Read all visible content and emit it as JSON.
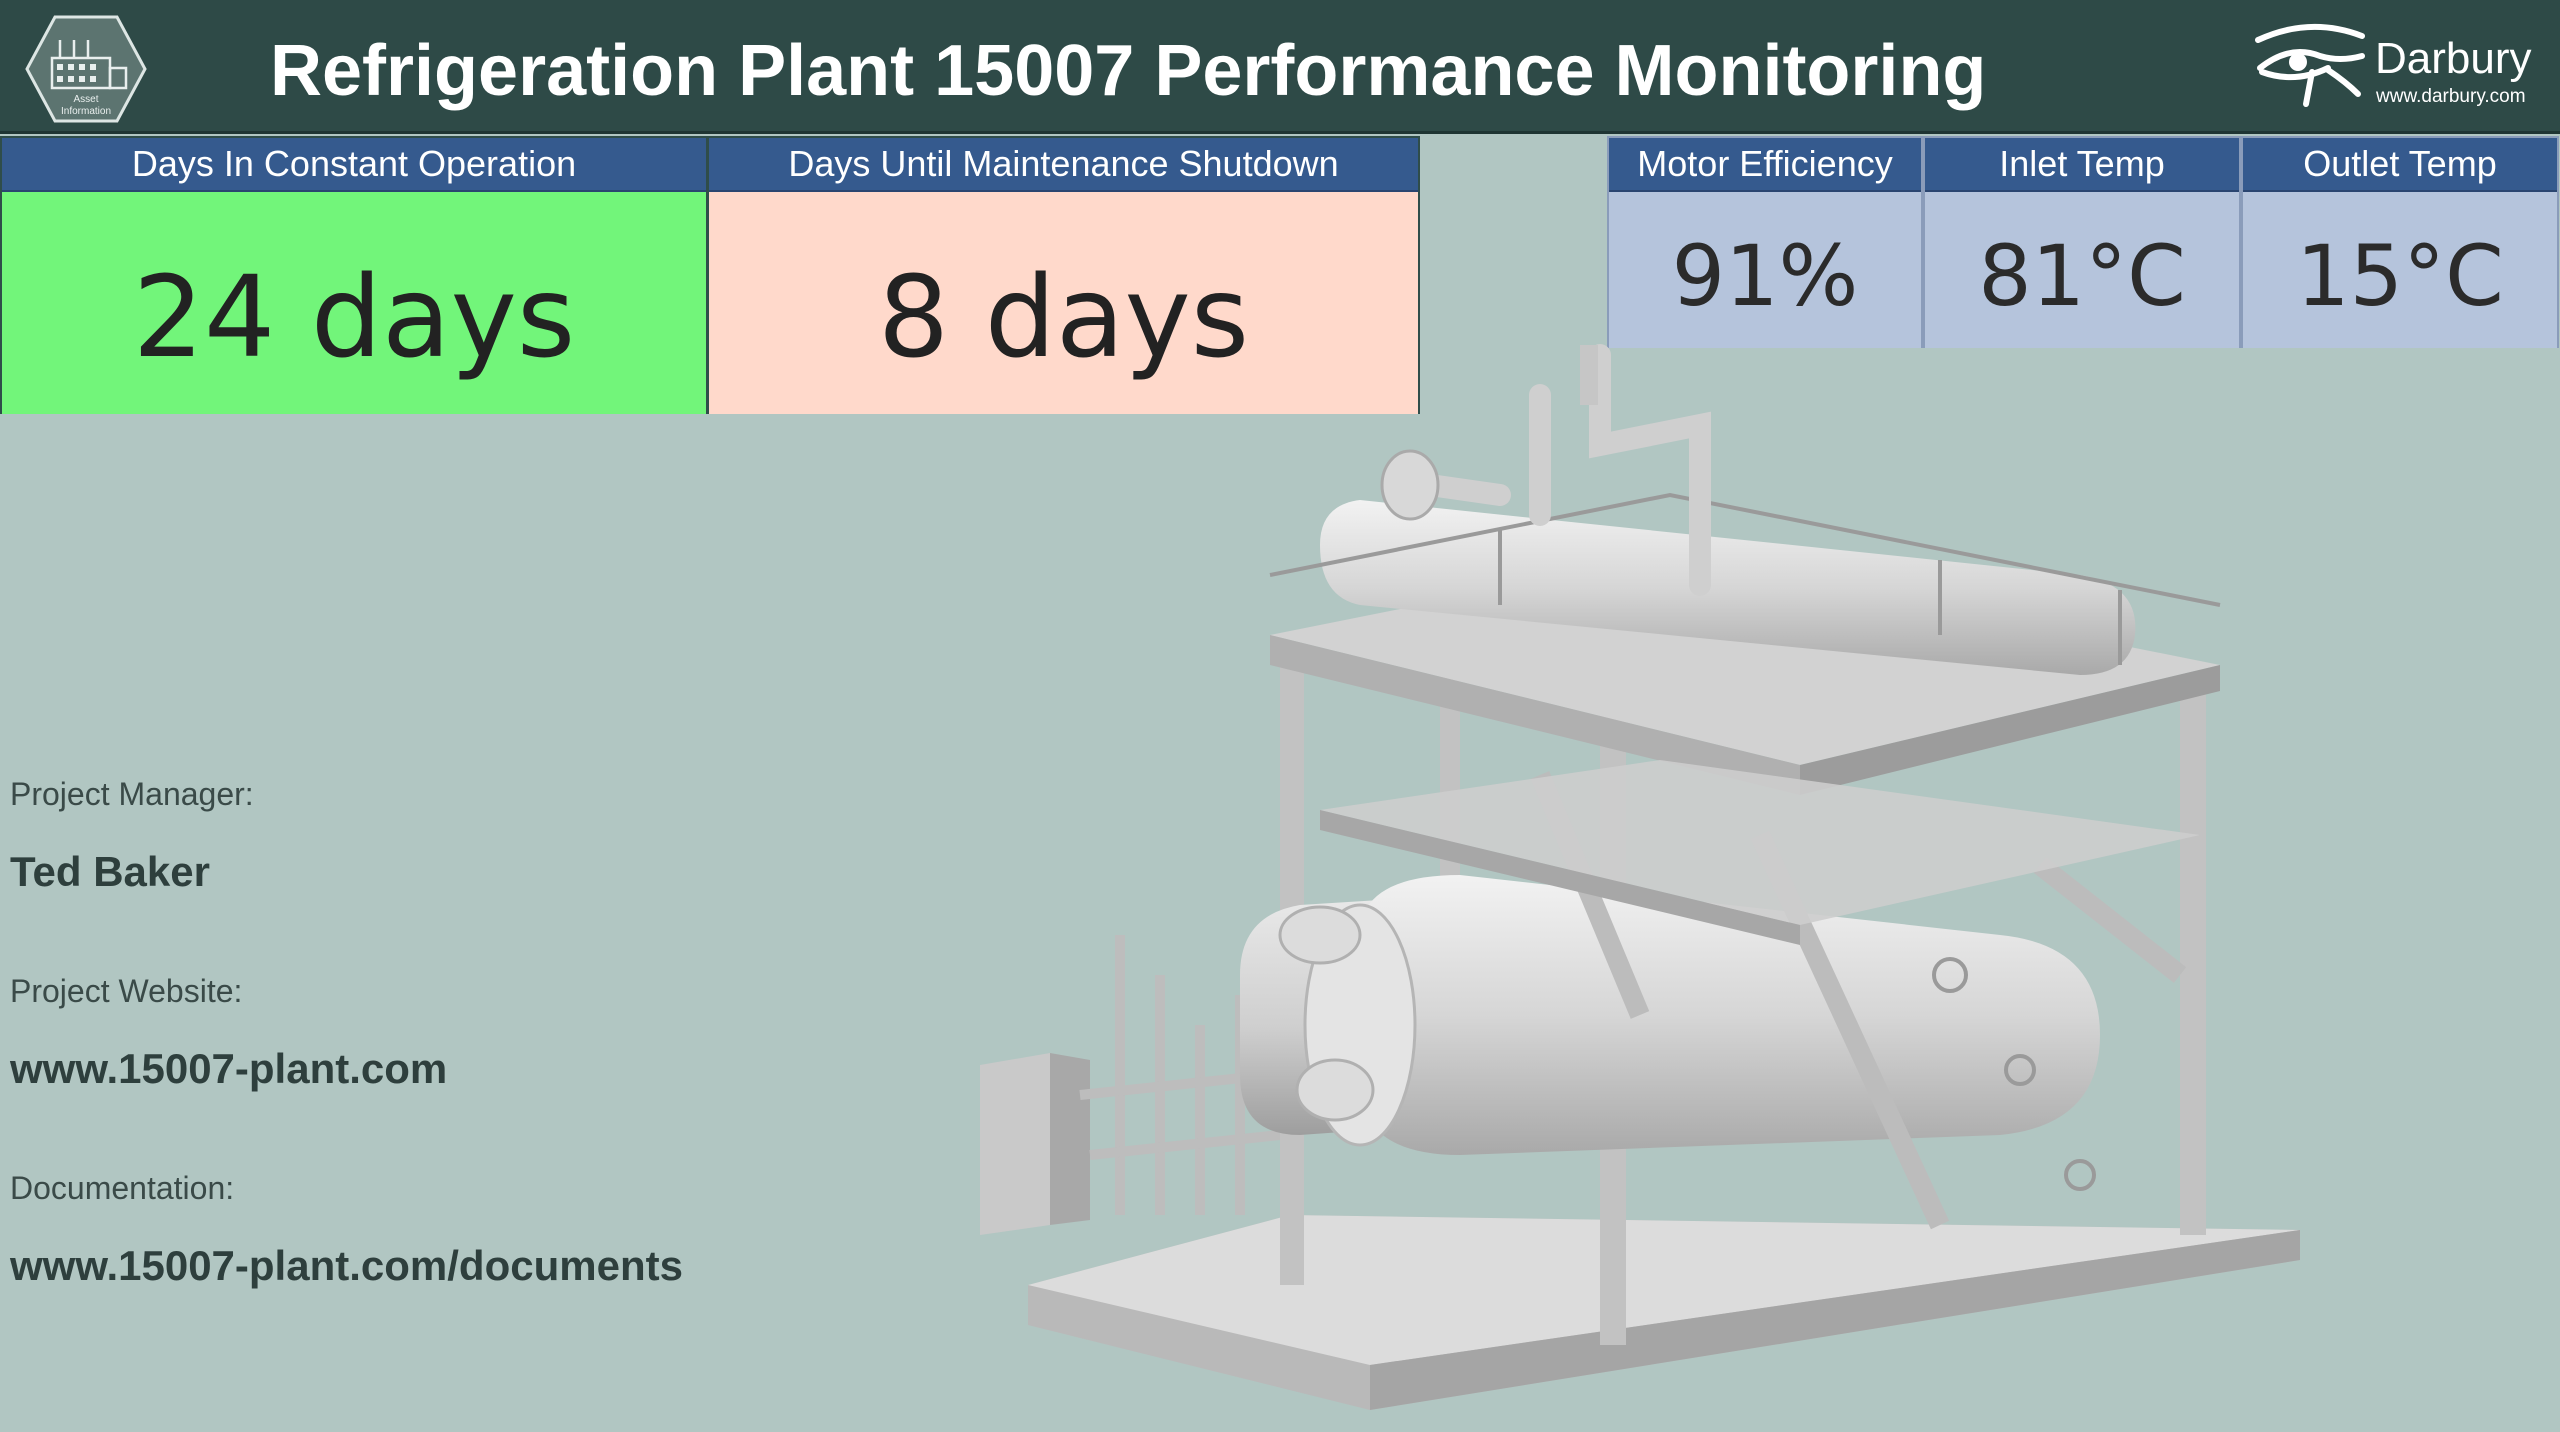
{
  "header": {
    "title": "Refrigeration Plant 15007 Performance Monitoring",
    "asset_icon_caption": [
      "Asset",
      "Information"
    ],
    "brand_name": "Darbury",
    "brand_url": "www.darbury.com"
  },
  "kpis": [
    {
      "label": "Days In Constant Operation",
      "value": "24 days",
      "color": "#72f57a"
    },
    {
      "label": "Days Until Maintenance Shutdown",
      "value": "8 days",
      "color": "#ffd9cb"
    }
  ],
  "metrics": [
    {
      "label": "Motor Efficiency",
      "value": "91%"
    },
    {
      "label": "Inlet Temp",
      "value": "81°C"
    },
    {
      "label": "Outlet Temp",
      "value": "15°C"
    }
  ],
  "project": {
    "manager_label": "Project Manager:",
    "manager": "Ted Baker",
    "website_label": "Project Website:",
    "website": "www.15007-plant.com",
    "docs_label": "Documentation:",
    "docs": "www.15007-plant.com/documents"
  },
  "colors": {
    "header_bg": "#2e4a47",
    "tile_header": "#355a8e",
    "metric_bg": "#b5c4dc",
    "page_bg": "#b1c6c2"
  }
}
